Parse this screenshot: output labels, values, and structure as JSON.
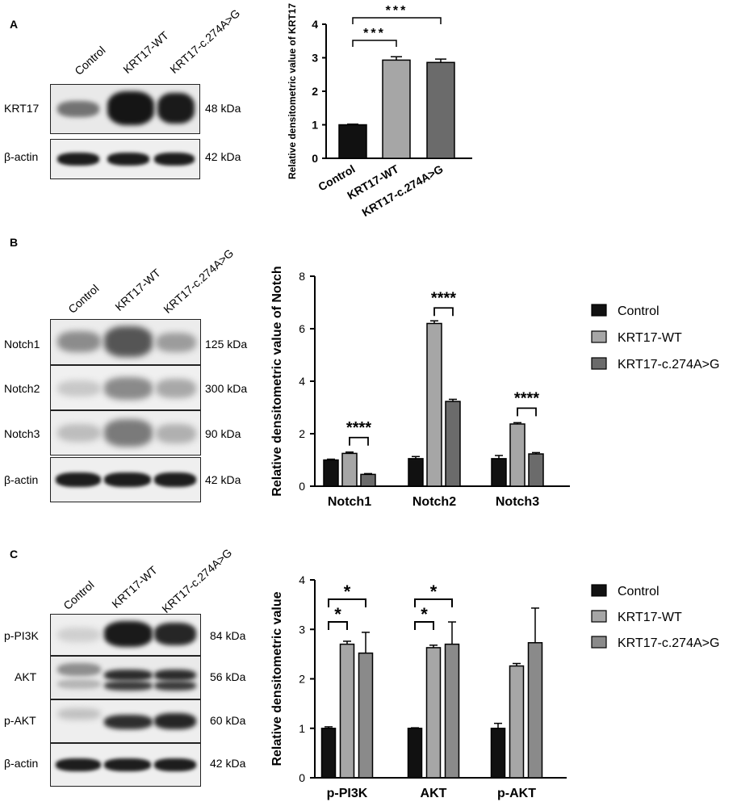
{
  "panels": [
    {
      "letter": "A",
      "lanes": [
        "Control",
        "KRT17-WT",
        "KRT17-c.274A>G"
      ],
      "rows": [
        {
          "label": "KRT17",
          "kda": "48 kDa"
        },
        {
          "label": "β-actin",
          "kda": "42 kDa"
        }
      ]
    },
    {
      "letter": "B",
      "lanes": [
        "Control",
        "KRT17-WT",
        "KRT17-c.274A>G"
      ],
      "rows": [
        {
          "label": "Notch1",
          "kda": "125 kDa"
        },
        {
          "label": "Notch2",
          "kda": "300 kDa"
        },
        {
          "label": "Notch3",
          "kda": "90 kDa"
        },
        {
          "label": "β-actin",
          "kda": "42 kDa"
        }
      ]
    },
    {
      "letter": "C",
      "lanes": [
        "Control",
        "KRT17-WT",
        "KRT17-c.274A>G"
      ],
      "rows": [
        {
          "label": "p-PI3K",
          "kda": "84 kDa"
        },
        {
          "label": "AKT",
          "kda": "56 kDa"
        },
        {
          "label": "p-AKT",
          "kda": "60 kDa"
        },
        {
          "label": "β-actin",
          "kda": "42 kDa"
        }
      ]
    }
  ],
  "chart_data": [
    {
      "type": "bar",
      "ylabel": "Relative densitometric value of KRT17",
      "ylim": [
        0,
        4
      ],
      "yticks": [
        "0",
        "1",
        "2",
        "3",
        "4"
      ],
      "categories": [
        "Control",
        "KRT17-WT",
        "KRT17-c.274A>G"
      ],
      "values": [
        1.0,
        2.93,
        2.86
      ],
      "errors": [
        0.02,
        0.1,
        0.1
      ],
      "colors": [
        "#111111",
        "#a6a6a6",
        "#6b6b6b"
      ],
      "significance": [
        {
          "label": "***",
          "from": 0,
          "to": 1
        },
        {
          "label": "***",
          "from": 0,
          "to": 2
        }
      ]
    },
    {
      "type": "bar",
      "ylabel": "Relative densitometric value of Notch",
      "ylim": [
        0,
        8
      ],
      "yticks": [
        "0",
        "2",
        "4",
        "6",
        "8"
      ],
      "categories": [
        "Notch1",
        "Notch2",
        "Notch3"
      ],
      "legend_position": "right",
      "series": [
        {
          "name": "Control",
          "color": "#111111",
          "values": [
            1.0,
            1.05,
            1.05
          ],
          "errors": [
            0.03,
            0.08,
            0.12
          ]
        },
        {
          "name": "KRT17-WT",
          "color": "#a6a6a6",
          "values": [
            1.25,
            6.2,
            2.37
          ],
          "errors": [
            0.05,
            0.1,
            0.05
          ]
        },
        {
          "name": "KRT17-c.274A>G",
          "color": "#6b6b6b",
          "values": [
            0.45,
            3.23,
            1.23
          ],
          "errors": [
            0.03,
            0.08,
            0.05
          ]
        }
      ],
      "significance": [
        {
          "label": "****",
          "category": 0
        },
        {
          "label": "****",
          "category": 1
        },
        {
          "label": "****",
          "category": 2
        }
      ]
    },
    {
      "type": "bar",
      "ylabel": "Relative densitometric value",
      "ylim": [
        0,
        4
      ],
      "yticks": [
        "0",
        "1",
        "2",
        "3",
        "4"
      ],
      "categories": [
        "p-PI3K",
        "AKT",
        "p-AKT"
      ],
      "legend_position": "right",
      "series": [
        {
          "name": "Control",
          "color": "#111111",
          "values": [
            1.0,
            1.0,
            1.0
          ],
          "errors": [
            0.03,
            0.01,
            0.1
          ]
        },
        {
          "name": "KRT17-WT",
          "color": "#a6a6a6",
          "values": [
            2.7,
            2.63,
            2.26
          ],
          "errors": [
            0.06,
            0.05,
            0.05
          ]
        },
        {
          "name": "KRT17-c.274A>G",
          "color": "#8a8a8a",
          "values": [
            2.52,
            2.7,
            2.73
          ],
          "errors": [
            0.42,
            0.45,
            0.7
          ]
        }
      ],
      "significance": [
        {
          "label": "*",
          "category": 0,
          "from": 0,
          "to": 1
        },
        {
          "label": "*",
          "category": 0,
          "from": 0,
          "to": 2
        },
        {
          "label": "*",
          "category": 1,
          "from": 0,
          "to": 1
        },
        {
          "label": "*",
          "category": 1,
          "from": 0,
          "to": 2
        }
      ]
    }
  ]
}
